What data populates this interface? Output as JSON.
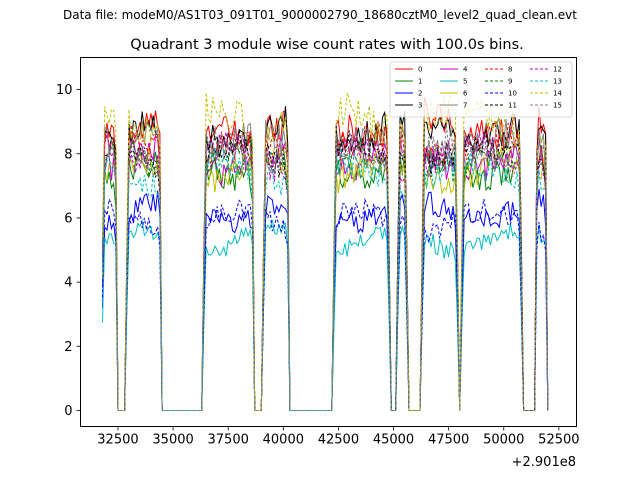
{
  "header": {
    "data_file": "Data file: modeM0/AS1T03_091T01_9000002790_18680cztM0_level2_quad_clean.evt"
  },
  "chart_data": {
    "type": "line",
    "title": "Quadrant 3 module wise count rates with 100.0s bins.",
    "xlabel": "",
    "ylabel": "",
    "x_offset_label": "+2.901e8",
    "xlim": [
      30800,
      53300
    ],
    "ylim": [
      -0.5,
      11
    ],
    "x_ticks": [
      32500,
      35000,
      37500,
      40000,
      42500,
      45000,
      47500,
      50000,
      52500
    ],
    "x_tick_labels": [
      "32500",
      "35000",
      "37500",
      "40000",
      "42500",
      "45000",
      "47500",
      "50000",
      "52500"
    ],
    "y_ticks": [
      0,
      2,
      4,
      6,
      8,
      10
    ],
    "y_tick_labels": [
      "0",
      "2",
      "4",
      "6",
      "8",
      "10"
    ],
    "grid": false,
    "legend_position": "top-right",
    "segments": [
      {
        "start": 31800,
        "end": 32450
      },
      {
        "start": 32900,
        "end": 34450
      },
      {
        "start": 36400,
        "end": 38650
      },
      {
        "start": 39100,
        "end": 40250
      },
      {
        "start": 42300,
        "end": 44800
      },
      {
        "start": 45200,
        "end": 45600
      },
      {
        "start": 46300,
        "end": 47900
      },
      {
        "start": 48100,
        "end": 50800
      },
      {
        "start": 51450,
        "end": 51950
      }
    ],
    "gap_level": 0,
    "series": [
      {
        "name": "0",
        "color": "#ff0000",
        "dash": "solid",
        "level": 8.9
      },
      {
        "name": "1",
        "color": "#008000",
        "dash": "solid",
        "level": 7.6
      },
      {
        "name": "2",
        "color": "#0000ff",
        "dash": "solid",
        "level": 6.2
      },
      {
        "name": "3",
        "color": "#000000",
        "dash": "solid",
        "level": 8.7
      },
      {
        "name": "4",
        "color": "#bf00bf",
        "dash": "solid",
        "level": 7.8
      },
      {
        "name": "5",
        "color": "#00bfbf",
        "dash": "solid",
        "level": 5.3
      },
      {
        "name": "6",
        "color": "#bfbf00",
        "dash": "solid",
        "level": 7.5
      },
      {
        "name": "7",
        "color": "#808080",
        "dash": "solid",
        "level": 8.3
      },
      {
        "name": "8",
        "color": "#ff0000",
        "dash": "dashed",
        "level": 8.2
      },
      {
        "name": "9",
        "color": "#008000",
        "dash": "dashed",
        "level": 7.7
      },
      {
        "name": "10",
        "color": "#0000ff",
        "dash": "dashed",
        "level": 5.9
      },
      {
        "name": "11",
        "color": "#000000",
        "dash": "dashed",
        "level": 8.0
      },
      {
        "name": "12",
        "color": "#bf00bf",
        "dash": "dashed",
        "level": 7.9
      },
      {
        "name": "13",
        "color": "#00bfbf",
        "dash": "dashed",
        "level": 7.4
      },
      {
        "name": "14",
        "color": "#bfbf00",
        "dash": "dashed",
        "level": 9.1
      },
      {
        "name": "15",
        "color": "#808080",
        "dash": "dashed",
        "level": 8.1
      }
    ]
  }
}
